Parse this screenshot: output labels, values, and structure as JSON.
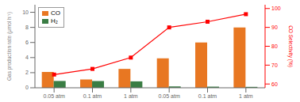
{
  "chart_data": {
    "type": "bar",
    "categories": [
      "0.05 atm",
      "0.1 atm",
      "1 atm",
      "0.05 atm",
      "0.1 atm",
      "1 atm"
    ],
    "series": [
      {
        "name": "CO",
        "color": "#E87722",
        "values": [
          2.1,
          1.1,
          2.5,
          3.9,
          6.0,
          8.0
        ]
      },
      {
        "name": "H₂",
        "color": "#3A7D44",
        "values": [
          0.9,
          0.9,
          0.85,
          0.18,
          0.15,
          0.12
        ]
      },
      {
        "type": "line",
        "color": "#FF0000",
        "marker": "square",
        "axis": "y2",
        "values": [
          65,
          68,
          74,
          90,
          93,
          97
        ]
      }
    ],
    "ylabel": "Gas production rate (μmol h⁻¹)",
    "y2label": "CO Selectivity (%)",
    "ylim": [
      0,
      11
    ],
    "yticks": [
      0,
      2,
      4,
      6,
      8,
      10
    ],
    "y2lim": [
      58,
      102
    ],
    "y2ticks": [
      60,
      70,
      80,
      90,
      100
    ],
    "legend": "upper left"
  }
}
